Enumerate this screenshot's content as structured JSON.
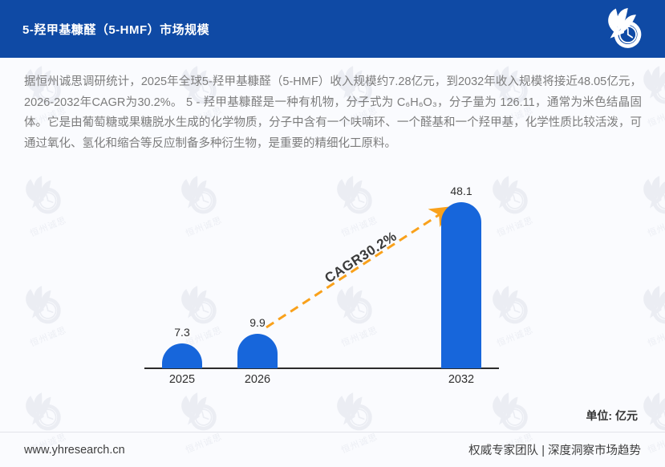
{
  "header": {
    "title": "5-羟甲基糠醛（5-HMF）市场规模",
    "logo_name": "yhresearch-logo"
  },
  "description": "据恒州诚思调研统计，2025年全球5-羟甲基糠醛（5-HMF）收入规模约7.28亿元，到2032年收入规模将接近48.05亿元，2026-2032年CAGR为30.2%。 5 - 羟甲基糠醛是一种有机物，分子式为 C₆H₆O₃，分子量为 126.11，通常为米色结晶固体。它是由葡萄糖或果糖脱水生成的化学物质，分子中含有一个呋喃环、一个醛基和一个羟甲基，化学性质比较活泼，可通过氧化、氢化和缩合等反应制备多种衍生物，是重要的精细化工原料。",
  "chart_data": {
    "type": "bar",
    "categories": [
      "2025",
      "2026",
      "2032"
    ],
    "values": [
      7.3,
      9.9,
      48.1
    ],
    "title": "5-羟甲基糠醛（5-HMF）市场规模",
    "xlabel": "",
    "ylabel": "",
    "unit_label": "单位: 亿元",
    "annotation": "CAGR30.2%",
    "ylim": [
      0,
      50
    ],
    "grid": false,
    "legend": false,
    "bar_color": "#1766DB",
    "arrow_color": "#F9A11B"
  },
  "watermark": {
    "text": "恒州诚思"
  },
  "footer": {
    "website": "www.yhresearch.cn",
    "tagline": "权威专家团队 | 深度洞察市场趋势"
  },
  "colors": {
    "header_bg": "#0F4AA5",
    "bar": "#1766DB",
    "arrow": "#F9A11B",
    "page_bg": "#FAFBFE"
  }
}
